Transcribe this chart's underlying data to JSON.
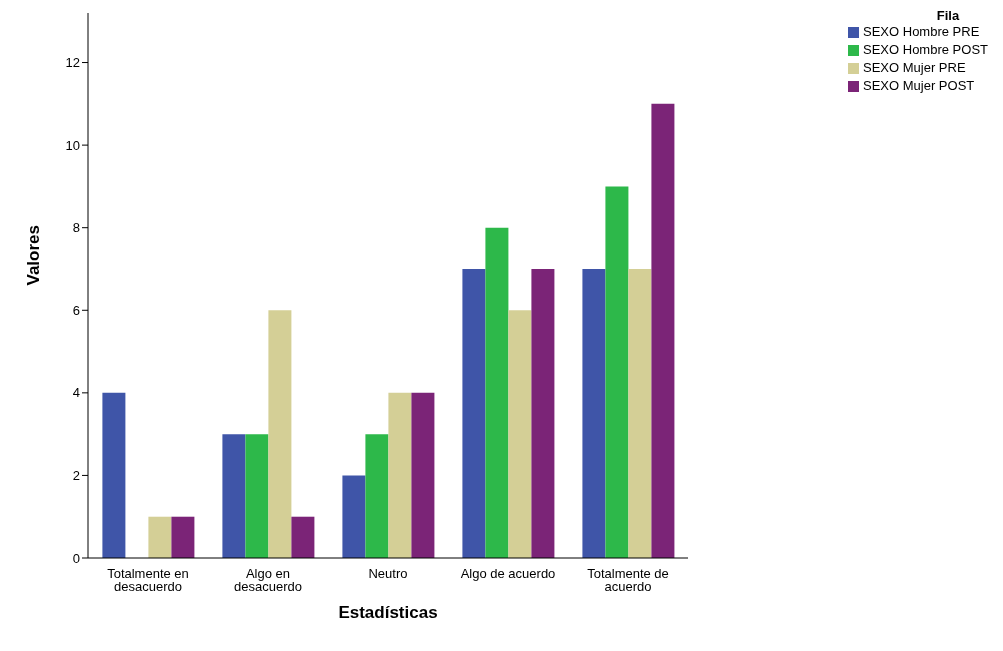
{
  "chart_data": {
    "type": "bar",
    "xlabel": "Estadísticas",
    "ylabel": "Valores",
    "legend_title": "Fila",
    "categories": [
      "Totalmente en desacuerdo",
      "Algo en desacuerdo",
      "Neutro",
      "Algo de acuerdo",
      "Totalmente de acuerdo"
    ],
    "series": [
      {
        "name": "SEXO Hombre PRE",
        "color": "#3f55a8",
        "values": [
          4,
          3,
          2,
          7,
          7
        ]
      },
      {
        "name": "SEXO Hombre POST",
        "color": "#2db84a",
        "values": [
          0,
          3,
          3,
          8,
          9
        ]
      },
      {
        "name": "SEXO Mujer PRE",
        "color": "#d4cf96",
        "values": [
          1,
          6,
          4,
          6,
          7
        ]
      },
      {
        "name": "SEXO Mujer POST",
        "color": "#7b2477",
        "values": [
          1,
          1,
          4,
          7,
          11
        ]
      }
    ],
    "ylim": [
      0,
      13.2
    ],
    "yticks": [
      0,
      2,
      4,
      6,
      8,
      10,
      12
    ],
    "grid": false,
    "legend": "top right"
  }
}
